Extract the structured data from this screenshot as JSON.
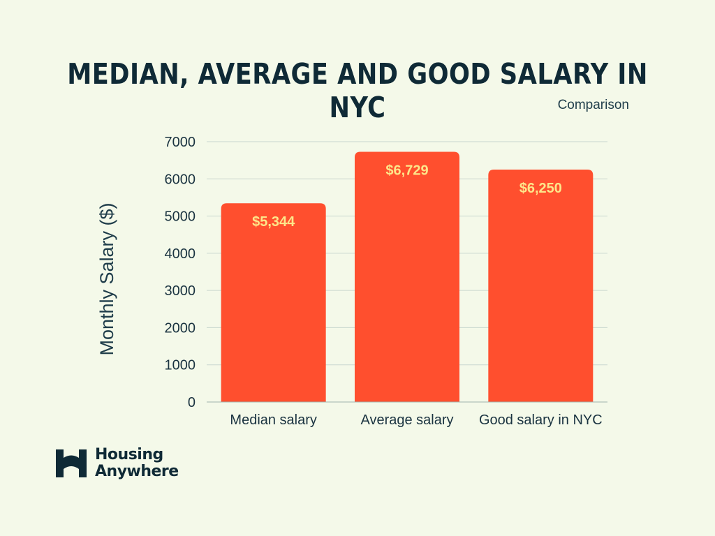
{
  "chart_data": {
    "type": "bar",
    "title": "MEDIAN, AVERAGE AND GOOD SALARY IN NYC",
    "subtitle": "Comparison",
    "categories": [
      "Median salary",
      "Average salary",
      "Good salary in NYC"
    ],
    "values": [
      5344,
      6729,
      6250
    ],
    "data_labels": [
      "$5,344",
      "$6,729",
      "$6,250"
    ],
    "xlabel": "",
    "ylabel": "Monthly Salary ($)",
    "ylim": [
      0,
      7000
    ],
    "yticks": [
      0,
      1000,
      2000,
      3000,
      4000,
      5000,
      6000,
      7000
    ],
    "grid": true,
    "bar_color": "#ff4f2e",
    "label_color": "#fde68a"
  },
  "brand": {
    "line1": "Housing",
    "line2": "Anywhere",
    "logo_icon": "bridge-h-icon"
  }
}
